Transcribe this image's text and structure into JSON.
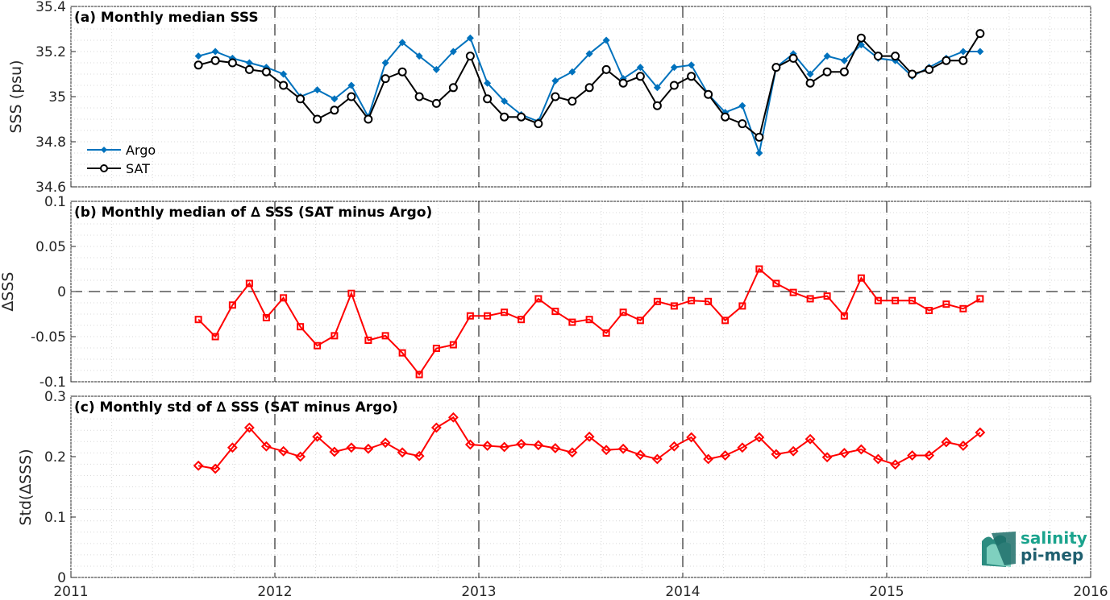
{
  "logo": {
    "line1": "salinity",
    "line2": "pi-mep"
  },
  "colors": {
    "argo": "#0072bd",
    "sat": "#000000",
    "delta": "#ff0000",
    "logo_light": "#1aa38d",
    "logo_dark": "#1f5f6f"
  },
  "chart_data": [
    {
      "type": "line",
      "title": "(a) Monthly median SSS",
      "ylabel": "SSS (psu)",
      "xlim": [
        2011,
        2016
      ],
      "ylim": [
        34.6,
        35.4
      ],
      "yticks": [
        "34.6",
        "34.8",
        "35",
        "35.2",
        "35.4"
      ],
      "grid": true,
      "legend": "lower-left",
      "x": [
        2011.625,
        2011.708,
        2011.792,
        2011.875,
        2011.958,
        2012.042,
        2012.125,
        2012.208,
        2012.292,
        2012.375,
        2012.458,
        2012.542,
        2012.625,
        2012.708,
        2012.792,
        2012.875,
        2012.958,
        2013.042,
        2013.125,
        2013.208,
        2013.292,
        2013.375,
        2013.458,
        2013.542,
        2013.625,
        2013.708,
        2013.792,
        2013.875,
        2013.958,
        2014.042,
        2014.125,
        2014.208,
        2014.292,
        2014.375,
        2014.458,
        2014.542,
        2014.625,
        2014.708,
        2014.792,
        2014.875,
        2014.958,
        2015.042,
        2015.125,
        2015.208,
        2015.292,
        2015.375,
        2015.458
      ],
      "series": [
        {
          "name": "Argo",
          "marker": "diamond",
          "values": [
            35.18,
            35.2,
            35.17,
            35.15,
            35.13,
            35.1,
            35.0,
            35.03,
            34.99,
            35.05,
            34.91,
            35.15,
            35.24,
            35.18,
            35.12,
            35.2,
            35.26,
            35.06,
            34.98,
            34.92,
            34.89,
            35.07,
            35.11,
            35.19,
            35.25,
            35.08,
            35.13,
            35.04,
            35.13,
            35.14,
            35.01,
            34.93,
            34.96,
            34.75,
            35.13,
            35.19,
            35.1,
            35.18,
            35.16,
            35.23,
            35.17,
            35.16,
            35.09,
            35.13,
            35.17,
            35.2,
            35.2
          ]
        },
        {
          "name": "SAT",
          "marker": "circle",
          "values": [
            35.14,
            35.16,
            35.15,
            35.12,
            35.11,
            35.05,
            34.99,
            34.9,
            34.94,
            35.0,
            34.9,
            35.08,
            35.11,
            35.0,
            34.97,
            35.04,
            35.18,
            34.99,
            34.91,
            34.91,
            34.88,
            35.0,
            34.98,
            35.04,
            35.12,
            35.06,
            35.09,
            34.96,
            35.05,
            35.09,
            35.01,
            34.91,
            34.88,
            34.82,
            35.13,
            35.17,
            35.06,
            35.11,
            35.11,
            35.26,
            35.18,
            35.18,
            35.1,
            35.12,
            35.16,
            35.16,
            35.28
          ]
        }
      ]
    },
    {
      "type": "line",
      "title": "(b) Monthly median of ∆ SSS (SAT minus Argo)",
      "ylabel": "∆SSS",
      "xlim": [
        2011,
        2016
      ],
      "ylim": [
        -0.1,
        0.1
      ],
      "yticks": [
        "-0.1",
        "-0.05",
        "0",
        "0.05",
        "0.1"
      ],
      "grid": true,
      "x": [
        2011.625,
        2011.708,
        2011.792,
        2011.875,
        2011.958,
        2012.042,
        2012.125,
        2012.208,
        2012.292,
        2012.375,
        2012.458,
        2012.542,
        2012.625,
        2012.708,
        2012.792,
        2012.875,
        2012.958,
        2013.042,
        2013.125,
        2013.208,
        2013.292,
        2013.375,
        2013.458,
        2013.542,
        2013.625,
        2013.708,
        2013.792,
        2013.875,
        2013.958,
        2014.042,
        2014.125,
        2014.208,
        2014.292,
        2014.375,
        2014.458,
        2014.542,
        2014.625,
        2014.708,
        2014.792,
        2014.875,
        2014.958,
        2015.042,
        2015.125,
        2015.208,
        2015.292,
        2015.375,
        2015.458
      ],
      "series": [
        {
          "marker": "square",
          "values": [
            -0.031,
            -0.05,
            -0.015,
            0.009,
            -0.029,
            -0.007,
            -0.039,
            -0.06,
            -0.049,
            -0.002,
            -0.054,
            -0.049,
            -0.068,
            -0.092,
            -0.063,
            -0.059,
            -0.027,
            -0.027,
            -0.023,
            -0.031,
            -0.008,
            -0.022,
            -0.034,
            -0.031,
            -0.046,
            -0.023,
            -0.032,
            -0.011,
            -0.016,
            -0.01,
            -0.011,
            -0.032,
            -0.016,
            0.025,
            0.009,
            -0.001,
            -0.008,
            -0.005,
            -0.027,
            0.015,
            -0.01,
            -0.01,
            -0.01,
            -0.021,
            -0.014,
            -0.019,
            -0.008
          ]
        }
      ]
    },
    {
      "type": "line",
      "title": "(c) Monthly std of ∆ SSS (SAT minus Argo)",
      "ylabel": "Std(∆SSS)",
      "xlim": [
        2011,
        2016
      ],
      "ylim": [
        0,
        0.3
      ],
      "yticks": [
        "0",
        "0.1",
        "0.2",
        "0.3"
      ],
      "xticks": [
        "2011",
        "2012",
        "2013",
        "2014",
        "2015",
        "2016"
      ],
      "grid": true,
      "x": [
        2011.625,
        2011.708,
        2011.792,
        2011.875,
        2011.958,
        2012.042,
        2012.125,
        2012.208,
        2012.292,
        2012.375,
        2012.458,
        2012.542,
        2012.625,
        2012.708,
        2012.792,
        2012.875,
        2012.958,
        2013.042,
        2013.125,
        2013.208,
        2013.292,
        2013.375,
        2013.458,
        2013.542,
        2013.625,
        2013.708,
        2013.792,
        2013.875,
        2013.958,
        2014.042,
        2014.125,
        2014.208,
        2014.292,
        2014.375,
        2014.458,
        2014.542,
        2014.625,
        2014.708,
        2014.792,
        2014.875,
        2014.958,
        2015.042,
        2015.125,
        2015.208,
        2015.292,
        2015.375,
        2015.458
      ],
      "series": [
        {
          "marker": "diamond-open",
          "values": [
            0.185,
            0.18,
            0.215,
            0.248,
            0.217,
            0.209,
            0.2,
            0.233,
            0.208,
            0.215,
            0.213,
            0.223,
            0.207,
            0.201,
            0.248,
            0.265,
            0.22,
            0.218,
            0.216,
            0.221,
            0.219,
            0.214,
            0.207,
            0.233,
            0.211,
            0.213,
            0.203,
            0.196,
            0.217,
            0.232,
            0.196,
            0.202,
            0.215,
            0.232,
            0.204,
            0.209,
            0.229,
            0.199,
            0.206,
            0.212,
            0.196,
            0.187,
            0.202,
            0.202,
            0.224,
            0.218,
            0.24
          ]
        }
      ]
    }
  ]
}
